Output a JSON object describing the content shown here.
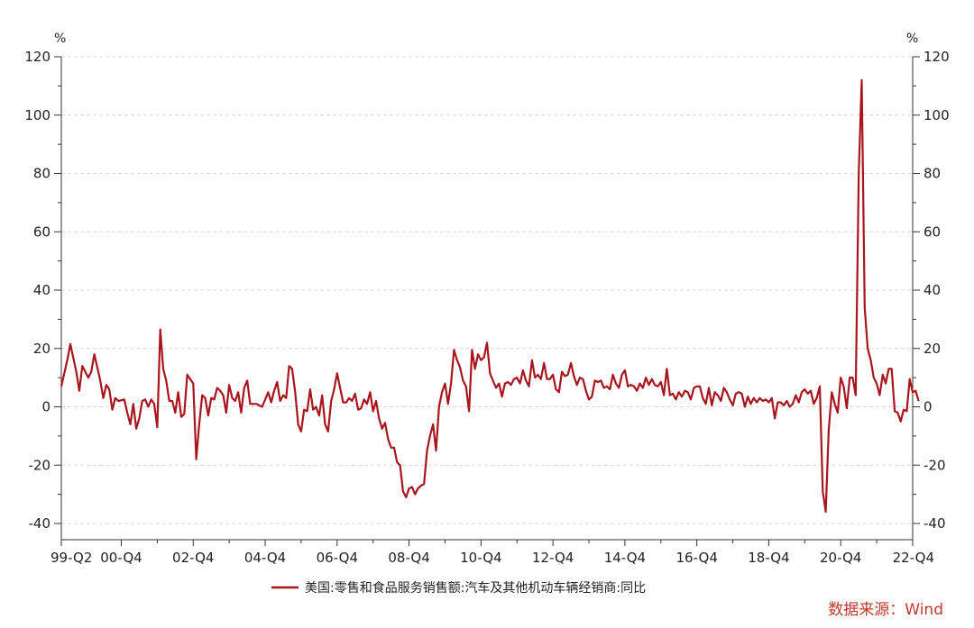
{
  "chart_data": {
    "type": "line",
    "title": "",
    "xlabel": "",
    "left_axis_unit": "%",
    "right_axis_unit": "%",
    "ylim": [
      -45,
      120
    ],
    "y_ticks": [
      -40,
      -20,
      0,
      20,
      40,
      60,
      80,
      100,
      120
    ],
    "x_tick_labels": [
      "99-Q2",
      "00-Q4",
      "02-Q4",
      "04-Q4",
      "06-Q4",
      "08-Q4",
      "10-Q4",
      "12-Q4",
      "14-Q4",
      "16-Q4",
      "18-Q4",
      "20-Q4",
      "22-Q4"
    ],
    "x_range": [
      "1999-04",
      "2022-12"
    ],
    "grid": "horizontal-dashed",
    "legend_position": "bottom-center",
    "series": [
      {
        "name": "美国:零售和食品服务销售额:汽车及其他机动车辆经销商:同比",
        "color": "#a8151c",
        "points": [
          [
            "1999-04",
            7
          ],
          [
            "1999-06",
            16
          ],
          [
            "1999-07",
            21.5
          ],
          [
            "1999-09",
            12
          ],
          [
            "1999-10",
            5.5
          ],
          [
            "1999-11",
            14
          ],
          [
            "2000-01",
            10
          ],
          [
            "2000-02",
            12
          ],
          [
            "2000-03",
            18
          ],
          [
            "2000-05",
            9
          ],
          [
            "2000-06",
            3
          ],
          [
            "2000-07",
            7.5
          ],
          [
            "2000-08",
            6
          ],
          [
            "2000-09",
            -1
          ],
          [
            "2000-10",
            3
          ],
          [
            "2000-11",
            2
          ],
          [
            "2001-01",
            2.5
          ],
          [
            "2001-02",
            -2
          ],
          [
            "2001-03",
            -6
          ],
          [
            "2001-04",
            1
          ],
          [
            "2001-05",
            -7.5
          ],
          [
            "2001-06",
            -4
          ],
          [
            "2001-07",
            2
          ],
          [
            "2001-08",
            2.5
          ],
          [
            "2001-09",
            0
          ],
          [
            "2001-10",
            2.5
          ],
          [
            "2001-11",
            1
          ],
          [
            "2001-12",
            -7
          ],
          [
            "2002-01",
            26.5
          ],
          [
            "2002-02",
            13
          ],
          [
            "2002-03",
            9
          ],
          [
            "2002-04",
            2
          ],
          [
            "2002-05",
            2
          ],
          [
            "2002-06",
            -2
          ],
          [
            "2002-07",
            5
          ],
          [
            "2002-08",
            -3.5
          ],
          [
            "2002-09",
            -2.5
          ],
          [
            "2002-10",
            11
          ],
          [
            "2002-11",
            9.5
          ],
          [
            "2002-12",
            8
          ],
          [
            "2003-01",
            -18
          ],
          [
            "2003-02",
            -6
          ],
          [
            "2003-03",
            4
          ],
          [
            "2003-04",
            3
          ],
          [
            "2003-05",
            -3
          ],
          [
            "2003-06",
            3
          ],
          [
            "2003-07",
            2.5
          ],
          [
            "2003-08",
            6.5
          ],
          [
            "2003-09",
            5.5
          ],
          [
            "2003-10",
            4
          ],
          [
            "2003-11",
            -2
          ],
          [
            "2003-12",
            7.5
          ],
          [
            "2004-01",
            3
          ],
          [
            "2004-02",
            2
          ],
          [
            "2004-03",
            5
          ],
          [
            "2004-04",
            -2
          ],
          [
            "2004-05",
            6.5
          ],
          [
            "2004-06",
            9
          ],
          [
            "2004-07",
            1
          ],
          [
            "2004-09",
            1
          ],
          [
            "2004-11",
            0
          ],
          [
            "2005-01",
            5
          ],
          [
            "2005-02",
            1.5
          ],
          [
            "2005-03",
            5.5
          ],
          [
            "2005-04",
            8.5
          ],
          [
            "2005-05",
            2
          ],
          [
            "2005-06",
            4
          ],
          [
            "2005-07",
            3
          ],
          [
            "2005-08",
            14
          ],
          [
            "2005-09",
            13
          ],
          [
            "2005-10",
            5
          ],
          [
            "2005-11",
            -6
          ],
          [
            "2005-12",
            -8.5
          ],
          [
            "2006-01",
            -1
          ],
          [
            "2006-02",
            -1.5
          ],
          [
            "2006-03",
            6
          ],
          [
            "2006-04",
            -1
          ],
          [
            "2006-05",
            0
          ],
          [
            "2006-06",
            -3
          ],
          [
            "2006-07",
            4
          ],
          [
            "2006-08",
            -6
          ],
          [
            "2006-09",
            -8.5
          ],
          [
            "2006-10",
            2
          ],
          [
            "2006-11",
            6
          ],
          [
            "2006-12",
            11.5
          ],
          [
            "2007-01",
            6.5
          ],
          [
            "2007-02",
            1.5
          ],
          [
            "2007-03",
            1.5
          ],
          [
            "2007-04",
            3
          ],
          [
            "2007-05",
            2
          ],
          [
            "2007-06",
            4.5
          ],
          [
            "2007-07",
            -1
          ],
          [
            "2007-08",
            -0.5
          ],
          [
            "2007-09",
            2.5
          ],
          [
            "2007-10",
            1
          ],
          [
            "2007-11",
            5
          ],
          [
            "2007-12",
            -1.5
          ],
          [
            "2008-01",
            2
          ],
          [
            "2008-02",
            -4
          ],
          [
            "2008-03",
            -7.5
          ],
          [
            "2008-04",
            -5.5
          ],
          [
            "2008-05",
            -11
          ],
          [
            "2008-06",
            -14
          ],
          [
            "2008-07",
            -14
          ],
          [
            "2008-08",
            -19
          ],
          [
            "2008-09",
            -20
          ],
          [
            "2008-10",
            -29
          ],
          [
            "2008-11",
            -31
          ],
          [
            "2008-12",
            -28
          ],
          [
            "2009-01",
            -27.5
          ],
          [
            "2009-02",
            -30
          ],
          [
            "2009-03",
            -28
          ],
          [
            "2009-04",
            -27
          ],
          [
            "2009-05",
            -26.5
          ],
          [
            "2009-06",
            -15
          ],
          [
            "2009-07",
            -10
          ],
          [
            "2009-08",
            -6
          ],
          [
            "2009-09",
            -15
          ],
          [
            "2009-10",
            0
          ],
          [
            "2009-11",
            5
          ],
          [
            "2009-12",
            8
          ],
          [
            "2010-01",
            1
          ],
          [
            "2010-02",
            8
          ],
          [
            "2010-03",
            19.5
          ],
          [
            "2010-04",
            16
          ],
          [
            "2010-05",
            13.5
          ],
          [
            "2010-06",
            9
          ],
          [
            "2010-07",
            7
          ],
          [
            "2010-08",
            -1.5
          ],
          [
            "2010-09",
            19.5
          ],
          [
            "2010-10",
            13
          ],
          [
            "2010-11",
            18
          ],
          [
            "2010-12",
            16
          ],
          [
            "2011-01",
            17
          ],
          [
            "2011-02",
            22
          ],
          [
            "2011-03",
            11.5
          ],
          [
            "2011-04",
            9
          ],
          [
            "2011-05",
            6.5
          ],
          [
            "2011-06",
            8
          ],
          [
            "2011-07",
            3.5
          ],
          [
            "2011-08",
            8
          ],
          [
            "2011-09",
            8.5
          ],
          [
            "2011-10",
            7.5
          ],
          [
            "2011-11",
            9.5
          ],
          [
            "2011-12",
            10
          ],
          [
            "2012-01",
            8
          ],
          [
            "2012-02",
            12.5
          ],
          [
            "2012-03",
            9
          ],
          [
            "2012-04",
            7
          ],
          [
            "2012-05",
            16
          ],
          [
            "2012-06",
            10
          ],
          [
            "2012-07",
            11
          ],
          [
            "2012-08",
            9.5
          ],
          [
            "2012-09",
            15
          ],
          [
            "2012-10",
            9.5
          ],
          [
            "2012-11",
            9.5
          ],
          [
            "2012-12",
            11
          ],
          [
            "2013-01",
            6
          ],
          [
            "2013-02",
            5
          ],
          [
            "2013-03",
            12
          ],
          [
            "2013-04",
            10.5
          ],
          [
            "2013-05",
            11
          ],
          [
            "2013-06",
            15
          ],
          [
            "2013-07",
            10.5
          ],
          [
            "2013-08",
            7.5
          ],
          [
            "2013-09",
            10
          ],
          [
            "2013-10",
            9.5
          ],
          [
            "2013-11",
            5.5
          ],
          [
            "2013-12",
            2.5
          ],
          [
            "2014-01",
            3.5
          ],
          [
            "2014-02",
            9
          ],
          [
            "2014-03",
            8.5
          ],
          [
            "2014-04",
            9
          ],
          [
            "2014-05",
            6.5
          ],
          [
            "2014-06",
            7
          ],
          [
            "2014-07",
            6
          ],
          [
            "2014-08",
            11
          ],
          [
            "2014-09",
            8
          ],
          [
            "2014-10",
            6.5
          ],
          [
            "2014-11",
            11
          ],
          [
            "2014-12",
            12.5
          ],
          [
            "2015-01",
            7
          ],
          [
            "2015-02",
            7.5
          ],
          [
            "2015-03",
            7
          ],
          [
            "2015-04",
            5.5
          ],
          [
            "2015-05",
            8
          ],
          [
            "2015-06",
            6.5
          ],
          [
            "2015-07",
            10
          ],
          [
            "2015-08",
            7.5
          ],
          [
            "2015-09",
            9.5
          ],
          [
            "2015-10",
            7.5
          ],
          [
            "2015-11",
            7
          ],
          [
            "2015-12",
            8.5
          ],
          [
            "2016-01",
            4
          ],
          [
            "2016-02",
            13
          ],
          [
            "2016-03",
            4
          ],
          [
            "2016-04",
            4.5
          ],
          [
            "2016-05",
            2.5
          ],
          [
            "2016-06",
            5
          ],
          [
            "2016-07",
            3.5
          ],
          [
            "2016-08",
            5.5
          ],
          [
            "2016-09",
            5
          ],
          [
            "2016-10",
            2.5
          ],
          [
            "2016-11",
            6.5
          ],
          [
            "2016-12",
            7
          ],
          [
            "2017-01",
            7
          ],
          [
            "2017-02",
            3
          ],
          [
            "2017-03",
            1
          ],
          [
            "2017-04",
            6.5
          ],
          [
            "2017-05",
            0.5
          ],
          [
            "2017-06",
            5
          ],
          [
            "2017-07",
            4
          ],
          [
            "2017-08",
            2
          ],
          [
            "2017-09",
            6.5
          ],
          [
            "2017-10",
            5
          ],
          [
            "2017-11",
            2.5
          ],
          [
            "2017-12",
            0.5
          ],
          [
            "2018-01",
            4.5
          ],
          [
            "2018-02",
            5
          ],
          [
            "2018-03",
            4.5
          ],
          [
            "2018-04",
            0
          ],
          [
            "2018-05",
            3.5
          ],
          [
            "2018-06",
            1
          ],
          [
            "2018-07",
            3
          ],
          [
            "2018-08",
            1.5
          ],
          [
            "2018-09",
            3
          ],
          [
            "2018-10",
            2
          ],
          [
            "2018-11",
            2.5
          ],
          [
            "2018-12",
            1.5
          ],
          [
            "2019-01",
            3
          ],
          [
            "2019-02",
            -4
          ],
          [
            "2019-03",
            1.5
          ],
          [
            "2019-04",
            1.5
          ],
          [
            "2019-05",
            0.5
          ],
          [
            "2019-06",
            2
          ],
          [
            "2019-07",
            0
          ],
          [
            "2019-08",
            1
          ],
          [
            "2019-09",
            4
          ],
          [
            "2019-10",
            1.5
          ],
          [
            "2019-11",
            5
          ],
          [
            "2019-12",
            6
          ],
          [
            "2020-01",
            4.5
          ],
          [
            "2020-02",
            5.5
          ],
          [
            "2020-03",
            1
          ],
          [
            "2020-04",
            3
          ],
          [
            "2020-05",
            7
          ],
          [
            "2020-06",
            -29
          ],
          [
            "2020-07",
            -36
          ],
          [
            "2020-08",
            -8
          ],
          [
            "2020-09",
            5
          ],
          [
            "2020-10",
            1
          ],
          [
            "2020-11",
            -2
          ],
          [
            "2020-12",
            10
          ],
          [
            "2021-01",
            7
          ],
          [
            "2021-02",
            -0.5
          ],
          [
            "2021-03",
            10
          ],
          [
            "2021-04",
            10
          ],
          [
            "2021-05",
            4
          ],
          [
            "2021-06",
            80
          ],
          [
            "2021-07",
            112
          ],
          [
            "2021-08",
            34
          ],
          [
            "2021-09",
            20
          ],
          [
            "2021-10",
            16
          ],
          [
            "2021-11",
            10
          ],
          [
            "2021-12",
            8
          ],
          [
            "2022-01",
            4
          ],
          [
            "2022-02",
            11
          ],
          [
            "2022-03",
            8
          ],
          [
            "2022-04",
            13
          ],
          [
            "2022-05",
            13
          ],
          [
            "2022-06",
            -1.5
          ],
          [
            "2022-07",
            -2
          ],
          [
            "2022-08",
            -5
          ],
          [
            "2022-09",
            -1
          ],
          [
            "2022-10",
            -1.5
          ],
          [
            "2022-11",
            9.5
          ],
          [
            "2022-12",
            5
          ],
          [
            "2023-01",
            5.5
          ],
          [
            "2023-02",
            2
          ]
        ]
      }
    ],
    "source": "数据来源：Wind",
    "source_color": "#c0392b"
  }
}
